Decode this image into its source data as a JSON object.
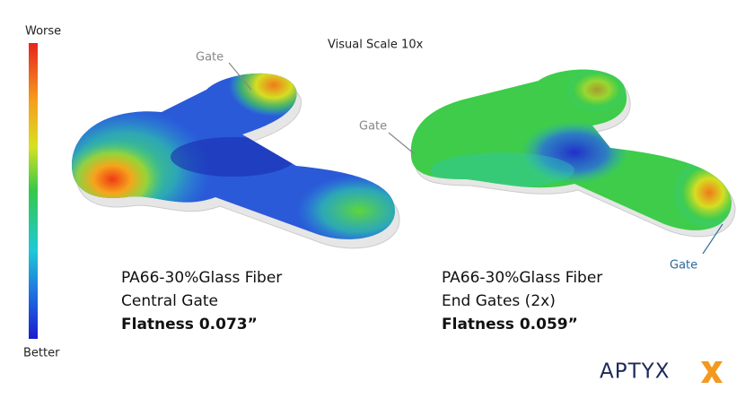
{
  "scale": {
    "top": "Worse",
    "bottom": "Better"
  },
  "title": "Visual Scale 10x",
  "gates": [
    "Gate",
    "Gate",
    "Gate"
  ],
  "left": {
    "lines": [
      "PA66-30%Glass Fiber",
      "Central Gate",
      "Flatness 0.073”"
    ]
  },
  "right": {
    "lines": [
      "PA66-30%Glass Fiber",
      "End Gates (2x)",
      "Flatness 0.059”"
    ]
  },
  "logo": "APTYX"
}
